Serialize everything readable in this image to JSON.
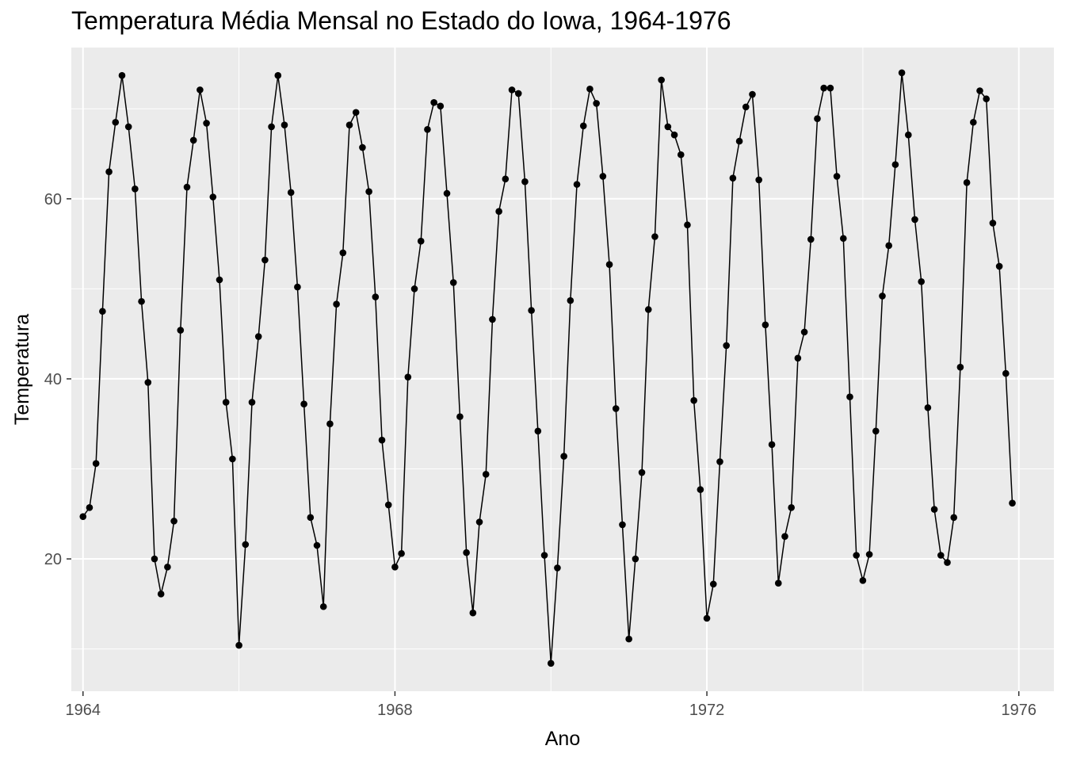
{
  "chart_data": {
    "type": "line",
    "title": "Temperatura Média Mensal no Estado do Iowa, 1964-1976",
    "xlabel": "Ano",
    "ylabel": "Temperatura",
    "xlim": [
      1963.85,
      1976.45
    ],
    "ylim": [
      5.3,
      76.8
    ],
    "x_ticks": [
      1964,
      1968,
      1972,
      1976
    ],
    "y_ticks": [
      20,
      40,
      60
    ],
    "grid": true,
    "markers": true,
    "colors": {
      "panel": "#ebebeb",
      "grid": "#ffffff",
      "line": "#000000",
      "tick_text": "#4d4d4d"
    },
    "series": [
      {
        "x_start": 1964,
        "x_step": 0.0833333,
        "values": [
          24.7,
          25.7,
          30.6,
          47.5,
          63.0,
          68.5,
          73.7,
          68.0,
          61.1,
          48.6,
          39.6,
          20.0,
          16.1,
          19.1,
          24.2,
          45.4,
          61.3,
          66.5,
          72.1,
          68.4,
          60.2,
          51.0,
          37.4,
          31.1,
          10.4,
          21.6,
          37.4,
          44.7,
          53.2,
          68.0,
          73.7,
          68.2,
          60.7,
          50.2,
          37.2,
          24.6,
          21.5,
          14.7,
          35.0,
          48.3,
          54.0,
          68.2,
          69.6,
          65.7,
          60.8,
          49.1,
          33.2,
          26.0,
          19.1,
          20.6,
          40.2,
          50.0,
          55.3,
          67.7,
          70.7,
          70.3,
          60.6,
          50.7,
          35.8,
          20.7,
          14.0,
          24.1,
          29.4,
          46.6,
          58.6,
          62.2,
          72.1,
          71.7,
          61.9,
          47.6,
          34.2,
          20.4,
          8.4,
          19.0,
          31.4,
          48.7,
          61.6,
          68.1,
          72.2,
          70.6,
          62.5,
          52.7,
          36.7,
          23.8,
          11.1,
          20.0,
          29.6,
          47.7,
          55.8,
          73.2,
          68.0,
          67.1,
          64.9,
          57.1,
          37.6,
          27.7,
          13.4,
          17.2,
          30.8,
          43.7,
          62.3,
          66.4,
          70.2,
          71.6,
          62.1,
          46.0,
          32.7,
          17.3,
          22.5,
          25.7,
          42.3,
          45.2,
          55.5,
          68.9,
          72.3,
          72.3,
          62.5,
          55.6,
          38.0,
          20.4,
          17.6,
          20.5,
          34.2,
          49.2,
          54.8,
          63.8,
          74.0,
          67.1,
          57.7,
          50.8,
          36.8,
          25.5,
          20.4,
          19.6,
          24.6,
          41.3,
          61.8,
          68.5,
          72.0,
          71.1,
          57.3,
          52.5,
          40.6,
          26.2
        ]
      }
    ]
  }
}
